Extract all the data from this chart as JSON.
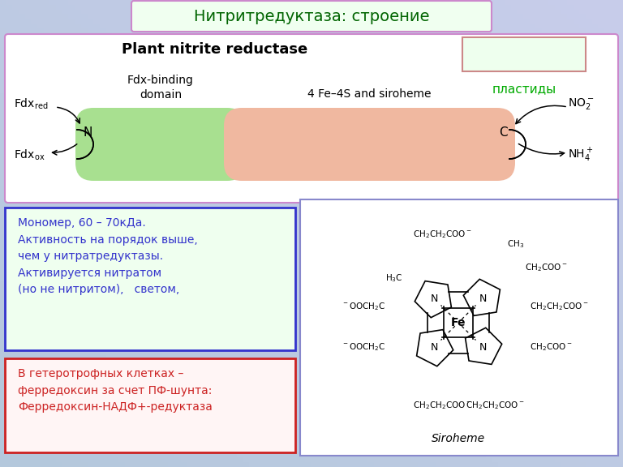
{
  "title": "Нитритредуктаза: строение",
  "title_color": "#006400",
  "title_fontsize": 14,
  "bg_color": "#c0cfe8",
  "top_box_bg": "#f0fff0",
  "top_box_border": "#cc88cc",
  "diagram_box_bg": "#ffffff",
  "diagram_box_border": "#cc88cc",
  "green_domain_color": "#a8e090",
  "pink_domain_color": "#f0b8a0",
  "plastid_box_color": "#eeffee",
  "plastid_box_border": "#cc8888",
  "plastid_text_color": "#00aa00",
  "info_box1_bg": "#efffef",
  "info_box1_border": "#3333cc",
  "info_box1_text_color": "#3333cc",
  "info_box1_text": "Мономер, 60 – 70кДа.\nАктивность на порядок выше,\nчем у нитратредуктазы.\nАктивируется нитратом\n(но не нитритом),   светом,",
  "info_box2_bg": "#fff5f5",
  "info_box2_border": "#cc2222",
  "info_box2_text_color": "#cc2222",
  "info_box2_text": "В гетеротрофных клетках –\nферредоксин за счет ПФ-шунта:\nФерредоксин-НАДФ+-редуктаза",
  "domain1_text": "Fdx-binding\ndomain",
  "domain2_text": "4 Fe–4S and siroheme",
  "plant_title": "Plant nitrite reductase",
  "siroheme_label": "Siroheme"
}
